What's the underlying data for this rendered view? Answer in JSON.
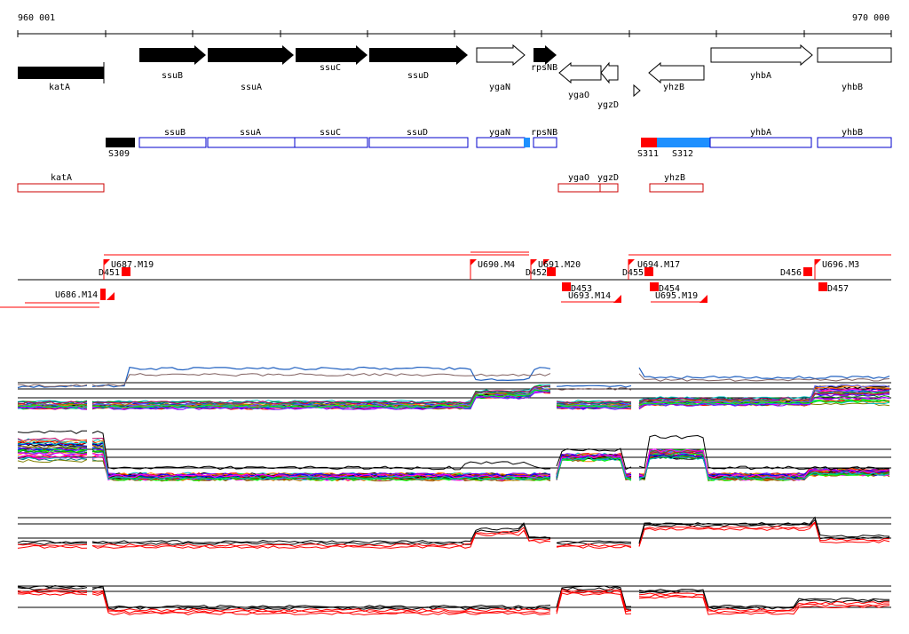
{
  "ruler": {
    "start_label": "960 001",
    "end_label": "970 000"
  },
  "genes_forward": [
    {
      "name": "katA",
      "filled": true,
      "arrow": false
    },
    {
      "name": "ssuB",
      "filled": true,
      "arrow": true
    },
    {
      "name": "ssuA",
      "filled": true,
      "arrow": true
    },
    {
      "name": "ssuC",
      "filled": true,
      "arrow": true
    },
    {
      "name": "ssuD",
      "filled": true,
      "arrow": true
    },
    {
      "name": "ygaN",
      "filled": false,
      "arrow": true
    },
    {
      "name": "rpsNB",
      "filled": true,
      "arrow": true
    },
    {
      "name": "yhbA",
      "filled": false,
      "arrow": true
    },
    {
      "name": "yhbB",
      "filled": false,
      "arrow": false
    }
  ],
  "genes_reverse": [
    {
      "name": "ygaO"
    },
    {
      "name": "ygzD"
    },
    {
      "name": "yhzB"
    }
  ],
  "operon_track_top": [
    {
      "name": "ssuB"
    },
    {
      "name": "ssuA"
    },
    {
      "name": "ssuC"
    },
    {
      "name": "ssuD"
    },
    {
      "name": "ygaN"
    },
    {
      "name": "rpsNB"
    },
    {
      "name": "yhbA"
    },
    {
      "name": "yhbB"
    }
  ],
  "segments": [
    {
      "label": "S309",
      "color": "#000000"
    },
    {
      "label": "S311",
      "color": "#ff0000"
    },
    {
      "label": "S312",
      "color": "#1e90ff"
    }
  ],
  "operon_track_bottom": [
    {
      "name": "katA"
    },
    {
      "name": "ygaO"
    },
    {
      "name": "ygzD"
    },
    {
      "name": "yhzB"
    }
  ],
  "upshifts_top": [
    {
      "label": "U687.M19"
    },
    {
      "label": "U690.M4"
    },
    {
      "label": "U691.M20"
    },
    {
      "label": "U694.M17"
    },
    {
      "label": "U696.M3"
    }
  ],
  "downshifts": [
    {
      "label": "D451"
    },
    {
      "label": "D452"
    },
    {
      "label": "D453"
    },
    {
      "label": "D454"
    },
    {
      "label": "D455"
    },
    {
      "label": "D456"
    },
    {
      "label": "D457"
    }
  ],
  "upshifts_bottom": [
    {
      "label": "U686.M14"
    },
    {
      "label": "U693.M14"
    },
    {
      "label": "U695.M19"
    }
  ],
  "colors": {
    "gene_fill": "#000000",
    "operon_stroke": "#0000cc",
    "reverse_stroke": "#cc0000",
    "shift_red": "#ff0000"
  }
}
